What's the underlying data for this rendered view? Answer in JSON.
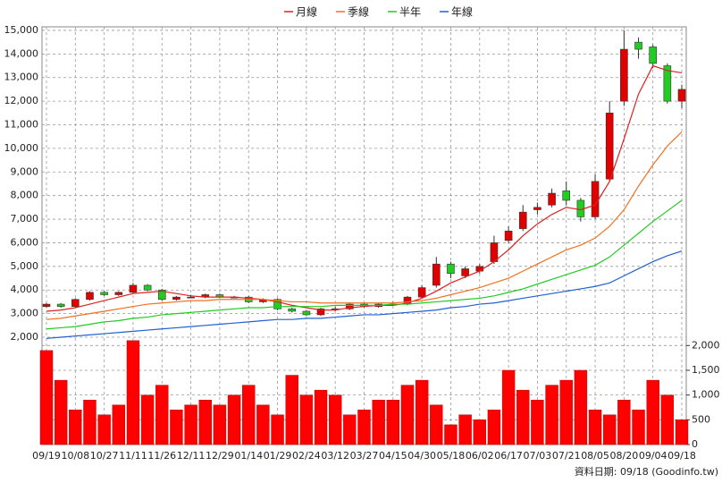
{
  "chart_data": [
    {
      "type": "candlestick",
      "categories": [
        "09/19",
        null,
        "10/08",
        null,
        "10/27",
        null,
        "11/11",
        null,
        "11/26",
        null,
        "12/11",
        null,
        "12/29",
        null,
        "01/14",
        null,
        "01/29",
        null,
        "02/24",
        null,
        "03/12",
        null,
        "03/27",
        null,
        "04/15",
        null,
        "04/30",
        null,
        "05/18",
        null,
        "06/02",
        null,
        "06/17",
        null,
        "07/03",
        null,
        "07/21",
        null,
        "08/05",
        null,
        "08/20",
        null,
        "09/04",
        null,
        "09/18"
      ],
      "open": [
        3300,
        3400,
        3300,
        3600,
        3900,
        3800,
        3900,
        4200,
        4000,
        3600,
        3700,
        3700,
        3800,
        3700,
        3700,
        3500,
        3600,
        3200,
        3100,
        2950,
        3200,
        3200,
        3400,
        3300,
        3400,
        3400,
        3700,
        4200,
        5100,
        4600,
        4800,
        5200,
        6100,
        6600,
        7400,
        7600,
        8200,
        7800,
        7100,
        8700,
        12000,
        14500,
        14300,
        13500,
        12000
      ],
      "high": [
        3450,
        3450,
        3650,
        3950,
        3950,
        3950,
        4300,
        4250,
        4050,
        3750,
        3800,
        3850,
        3850,
        3750,
        3750,
        3650,
        3650,
        3250,
        3150,
        3250,
        3300,
        3450,
        3450,
        3450,
        3500,
        3750,
        4200,
        5400,
        5200,
        5000,
        5100,
        6300,
        6700,
        7600,
        7700,
        8300,
        8600,
        7900,
        8900,
        12000,
        15000,
        14700,
        14400,
        13600,
        12700
      ],
      "low": [
        3250,
        3250,
        3250,
        3550,
        3750,
        3750,
        3850,
        3950,
        3550,
        3550,
        3650,
        3650,
        3650,
        3650,
        3450,
        3450,
        3150,
        3050,
        2900,
        2900,
        3100,
        3150,
        3250,
        3250,
        3350,
        3350,
        3650,
        4100,
        4500,
        4500,
        4700,
        5100,
        6000,
        6500,
        7200,
        7500,
        7600,
        6900,
        7000,
        8600,
        11800,
        13800,
        13400,
        11900,
        11700
      ],
      "close": [
        3400,
        3300,
        3600,
        3900,
        3800,
        3900,
        4200,
        4000,
        3600,
        3700,
        3700,
        3800,
        3700,
        3700,
        3500,
        3600,
        3200,
        3100,
        2950,
        3200,
        3200,
        3400,
        3300,
        3400,
        3400,
        3700,
        4100,
        5100,
        4700,
        4900,
        5000,
        6000,
        6500,
        7300,
        7500,
        8100,
        7800,
        7100,
        8600,
        11500,
        14200,
        14200,
        13600,
        12000,
        12500
      ],
      "up_color": "#e00000",
      "down_color": "#22cc22",
      "series": [
        {
          "name": "月線",
          "color": "#e02020",
          "values": [
            3100,
            3150,
            3250,
            3400,
            3550,
            3700,
            3850,
            3900,
            3950,
            3850,
            3750,
            3700,
            3700,
            3700,
            3650,
            3600,
            3500,
            3350,
            3250,
            3150,
            3150,
            3250,
            3300,
            3350,
            3350,
            3450,
            3650,
            3950,
            4300,
            4550,
            4800,
            5200,
            5700,
            6300,
            6800,
            7200,
            7500,
            7400,
            7600,
            8600,
            10400,
            12300,
            13500,
            13300,
            13200
          ]
        },
        {
          "name": "季線",
          "color": "#f07020",
          "values": [
            2750,
            2800,
            2900,
            3000,
            3100,
            3200,
            3300,
            3400,
            3450,
            3500,
            3550,
            3550,
            3600,
            3600,
            3600,
            3600,
            3550,
            3500,
            3500,
            3450,
            3450,
            3450,
            3450,
            3450,
            3450,
            3500,
            3550,
            3650,
            3800,
            3950,
            4100,
            4300,
            4500,
            4800,
            5100,
            5400,
            5700,
            5900,
            6200,
            6700,
            7400,
            8400,
            9300,
            10100,
            10700
          ]
        },
        {
          "name": "半年",
          "color": "#20cc20",
          "values": [
            2350,
            2400,
            2450,
            2550,
            2650,
            2700,
            2800,
            2850,
            2950,
            3000,
            3050,
            3100,
            3150,
            3200,
            3250,
            3250,
            3300,
            3300,
            3300,
            3300,
            3350,
            3350,
            3350,
            3350,
            3400,
            3400,
            3450,
            3500,
            3550,
            3600,
            3650,
            3750,
            3900,
            4050,
            4250,
            4450,
            4650,
            4850,
            5050,
            5400,
            5900,
            6400,
            6900,
            7350,
            7800
          ]
        },
        {
          "name": "年線",
          "color": "#2060d0",
          "values": [
            1950,
            2000,
            2050,
            2100,
            2150,
            2200,
            2250,
            2300,
            2350,
            2400,
            2450,
            2500,
            2550,
            2600,
            2650,
            2700,
            2750,
            2750,
            2800,
            2800,
            2850,
            2900,
            2950,
            2950,
            3000,
            3050,
            3100,
            3150,
            3250,
            3300,
            3400,
            3450,
            3550,
            3650,
            3750,
            3850,
            3950,
            4050,
            4150,
            4300,
            4600,
            4900,
            5200,
            5450,
            5650
          ]
        }
      ],
      "ylim": [
        2000,
        15150
      ],
      "yticks": [
        {
          "value": 2000,
          "label": "2,000"
        },
        {
          "value": 3000,
          "label": "3,000"
        },
        {
          "value": 4000,
          "label": "4,000"
        },
        {
          "value": 5000,
          "label": "5,000"
        },
        {
          "value": 6000,
          "label": "6,000"
        },
        {
          "value": 7000,
          "label": "7,000"
        },
        {
          "value": 8000,
          "label": "8,000"
        },
        {
          "value": 9000,
          "label": "9,000"
        },
        {
          "value": 10000,
          "label": "10,000"
        },
        {
          "value": 11000,
          "label": "11,000"
        },
        {
          "value": 12000,
          "label": "12,000"
        },
        {
          "value": 13000,
          "label": "13,000"
        },
        {
          "value": 14000,
          "label": "14,000"
        },
        {
          "value": 15000,
          "label": "15,000"
        }
      ],
      "grid": true,
      "legend": "top",
      "note": "資料日期: 09/18 (Goodinfo.tw)"
    },
    {
      "type": "bar",
      "values": [
        1900,
        1300,
        700,
        900,
        600,
        800,
        2100,
        1000,
        1200,
        700,
        800,
        900,
        800,
        1000,
        1200,
        800,
        600,
        1400,
        1000,
        1100,
        1000,
        600,
        700,
        900,
        900,
        1200,
        1300,
        800,
        400,
        600,
        500,
        700,
        1500,
        1100,
        900,
        1200,
        1300,
        1500,
        700,
        600,
        900,
        700,
        1300,
        1000,
        500
      ],
      "color": "#ff0000",
      "ylim": [
        0,
        2150
      ],
      "yticks": [
        0,
        500,
        {
          "value": 1000,
          "label": "1,000"
        },
        {
          "value": 1500,
          "label": "1,500"
        },
        {
          "value": 2000,
          "label": "2,000"
        }
      ],
      "axis_side": "right",
      "grid": true
    }
  ]
}
